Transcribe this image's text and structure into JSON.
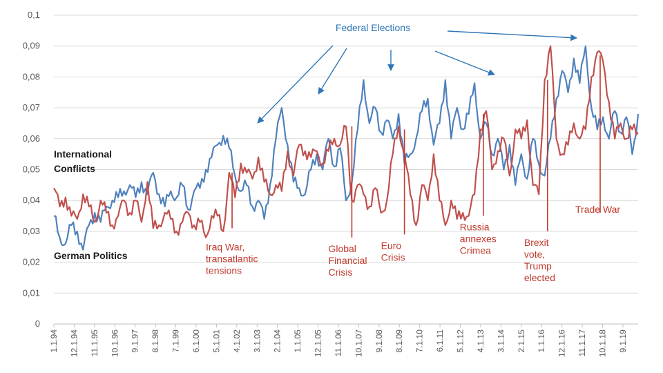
{
  "chart_data": {
    "type": "line",
    "title": "",
    "xlabel": "",
    "ylabel": "",
    "ylim": [
      0,
      0.1
    ],
    "y_ticks": [
      "0",
      "0,01",
      "0,02",
      "0,03",
      "0,04",
      "0,05",
      "0,06",
      "0,07",
      "0,08",
      "0,09",
      "0,1"
    ],
    "x_ticks": [
      "1.1.94",
      "12.1.94",
      "11.1.95",
      "10.1.96",
      "9.1.97",
      "8.1.98",
      "7.1.99",
      "6.1.00",
      "5.1.01",
      "4.1.02",
      "3.1.03",
      "2.1.04",
      "1.1.05",
      "12.1.05",
      "11.1.06",
      "10.1.07",
      "9.1.08",
      "8.1.09",
      "7.1.10",
      "6.1.11",
      "5.1.12",
      "4.1.13",
      "3.1.14",
      "2.1.15",
      "1.1.16",
      "12.1.16",
      "11.1.17",
      "10.1.18",
      "9.1.19"
    ],
    "grid": "horizontal",
    "series": [
      {
        "name": "International Conflicts",
        "color": "#4f81bd",
        "label_lines": [
          "International",
          "Conflicts"
        ],
        "anchors": [
          [
            0,
            0.035
          ],
          [
            1,
            0.028
          ],
          [
            2,
            0.026
          ],
          [
            3,
            0.032
          ],
          [
            4,
            0.03
          ],
          [
            5,
            0.024
          ],
          [
            6,
            0.032
          ],
          [
            7,
            0.036
          ],
          [
            8,
            0.033
          ],
          [
            9,
            0.038
          ],
          [
            10,
            0.04
          ],
          [
            11,
            0.041
          ],
          [
            12,
            0.043
          ],
          [
            13,
            0.045
          ],
          [
            14,
            0.041
          ],
          [
            15,
            0.046
          ],
          [
            16,
            0.042
          ],
          [
            17,
            0.049
          ],
          [
            18,
            0.042
          ],
          [
            19,
            0.038
          ],
          [
            20,
            0.043
          ],
          [
            21,
            0.041
          ],
          [
            22,
            0.045
          ],
          [
            23,
            0.037
          ],
          [
            24,
            0.043
          ],
          [
            25,
            0.044
          ],
          [
            26,
            0.05
          ],
          [
            27,
            0.054
          ],
          [
            28,
            0.058
          ],
          [
            29,
            0.061
          ],
          [
            30,
            0.057
          ],
          [
            31,
            0.048
          ],
          [
            32,
            0.043
          ],
          [
            33,
            0.045
          ],
          [
            34,
            0.038
          ],
          [
            35,
            0.04
          ],
          [
            36,
            0.034
          ],
          [
            37,
            0.045
          ],
          [
            38,
            0.06
          ],
          [
            39,
            0.07
          ],
          [
            40,
            0.058
          ],
          [
            41,
            0.046
          ],
          [
            42,
            0.044
          ],
          [
            43,
            0.042
          ],
          [
            44,
            0.05
          ],
          [
            45,
            0.055
          ],
          [
            46,
            0.05
          ],
          [
            47,
            0.06
          ],
          [
            48,
            0.051
          ],
          [
            49,
            0.057
          ],
          [
            50,
            0.04
          ],
          [
            51,
            0.046
          ],
          [
            52,
            0.063
          ],
          [
            53,
            0.079
          ],
          [
            54,
            0.065
          ],
          [
            55,
            0.07
          ],
          [
            56,
            0.062
          ],
          [
            57,
            0.066
          ],
          [
            58,
            0.06
          ],
          [
            59,
            0.068
          ],
          [
            60,
            0.052
          ],
          [
            61,
            0.055
          ],
          [
            62,
            0.06
          ],
          [
            63,
            0.069
          ],
          [
            64,
            0.073
          ],
          [
            65,
            0.058
          ],
          [
            66,
            0.065
          ],
          [
            67,
            0.079
          ],
          [
            68,
            0.06
          ],
          [
            69,
            0.07
          ],
          [
            70,
            0.063
          ],
          [
            71,
            0.068
          ],
          [
            72,
            0.078
          ],
          [
            73,
            0.06
          ],
          [
            74,
            0.065
          ],
          [
            75,
            0.055
          ],
          [
            76,
            0.06
          ],
          [
            77,
            0.05
          ],
          [
            78,
            0.058
          ],
          [
            79,
            0.045
          ],
          [
            80,
            0.055
          ],
          [
            81,
            0.047
          ],
          [
            82,
            0.06
          ],
          [
            83,
            0.052
          ],
          [
            84,
            0.048
          ],
          [
            85,
            0.06
          ],
          [
            86,
            0.073
          ],
          [
            87,
            0.082
          ],
          [
            88,
            0.075
          ],
          [
            89,
            0.086
          ],
          [
            90,
            0.078
          ],
          [
            91,
            0.09
          ],
          [
            92,
            0.07
          ],
          [
            93,
            0.063
          ],
          [
            94,
            0.067
          ],
          [
            95,
            0.06
          ],
          [
            96,
            0.069
          ],
          [
            97,
            0.062
          ],
          [
            98,
            0.067
          ],
          [
            99,
            0.055
          ],
          [
            100,
            0.068
          ]
        ]
      },
      {
        "name": "German Politics",
        "color": "#c0504d",
        "label_lines": [
          "German Politics"
        ],
        "anchors": [
          [
            0,
            0.044
          ],
          [
            1,
            0.038
          ],
          [
            2,
            0.041
          ],
          [
            3,
            0.035
          ],
          [
            4,
            0.034
          ],
          [
            5,
            0.042
          ],
          [
            6,
            0.038
          ],
          [
            7,
            0.033
          ],
          [
            8,
            0.04
          ],
          [
            9,
            0.036
          ],
          [
            10,
            0.032
          ],
          [
            11,
            0.035
          ],
          [
            12,
            0.04
          ],
          [
            13,
            0.036
          ],
          [
            14,
            0.04
          ],
          [
            15,
            0.033
          ],
          [
            16,
            0.046
          ],
          [
            17,
            0.031
          ],
          [
            18,
            0.032
          ],
          [
            19,
            0.036
          ],
          [
            20,
            0.034
          ],
          [
            21,
            0.03
          ],
          [
            22,
            0.033
          ],
          [
            23,
            0.036
          ],
          [
            24,
            0.032
          ],
          [
            25,
            0.033
          ],
          [
            26,
            0.028
          ],
          [
            27,
            0.035
          ],
          [
            28,
            0.035
          ],
          [
            29,
            0.03
          ],
          [
            30,
            0.049
          ],
          [
            31,
            0.041
          ],
          [
            32,
            0.052
          ],
          [
            33,
            0.049
          ],
          [
            34,
            0.047
          ],
          [
            35,
            0.054
          ],
          [
            36,
            0.046
          ],
          [
            37,
            0.042
          ],
          [
            38,
            0.045
          ],
          [
            39,
            0.043
          ],
          [
            40,
            0.056
          ],
          [
            41,
            0.048
          ],
          [
            42,
            0.058
          ],
          [
            43,
            0.056
          ],
          [
            44,
            0.054
          ],
          [
            45,
            0.056
          ],
          [
            46,
            0.052
          ],
          [
            47,
            0.056
          ],
          [
            48,
            0.06
          ],
          [
            49,
            0.058
          ],
          [
            50,
            0.064
          ],
          [
            51,
            0.04
          ],
          [
            52,
            0.045
          ],
          [
            53,
            0.042
          ],
          [
            54,
            0.038
          ],
          [
            55,
            0.044
          ],
          [
            56,
            0.036
          ],
          [
            57,
            0.04
          ],
          [
            58,
            0.055
          ],
          [
            59,
            0.064
          ],
          [
            60,
            0.055
          ],
          [
            61,
            0.042
          ],
          [
            62,
            0.032
          ],
          [
            63,
            0.045
          ],
          [
            64,
            0.04
          ],
          [
            65,
            0.055
          ],
          [
            66,
            0.04
          ],
          [
            67,
            0.032
          ],
          [
            68,
            0.04
          ],
          [
            69,
            0.034
          ],
          [
            70,
            0.036
          ],
          [
            71,
            0.035
          ],
          [
            72,
            0.042
          ],
          [
            73,
            0.063
          ],
          [
            74,
            0.069
          ],
          [
            75,
            0.05
          ],
          [
            76,
            0.056
          ],
          [
            77,
            0.06
          ],
          [
            78,
            0.048
          ],
          [
            79,
            0.063
          ],
          [
            80,
            0.06
          ],
          [
            81,
            0.066
          ],
          [
            82,
            0.045
          ],
          [
            83,
            0.042
          ],
          [
            84,
            0.079
          ],
          [
            85,
            0.09
          ],
          [
            86,
            0.06
          ],
          [
            87,
            0.055
          ],
          [
            88,
            0.058
          ],
          [
            89,
            0.065
          ],
          [
            90,
            0.06
          ],
          [
            91,
            0.063
          ],
          [
            92,
            0.08
          ],
          [
            93,
            0.088
          ],
          [
            94,
            0.085
          ],
          [
            95,
            0.072
          ],
          [
            96,
            0.06
          ],
          [
            97,
            0.065
          ],
          [
            98,
            0.06
          ],
          [
            99,
            0.063
          ],
          [
            100,
            0.062
          ]
        ]
      }
    ],
    "annotations_red": [
      {
        "lines": [
          "Iraq War,",
          "transatlantic",
          "tensions"
        ],
        "x": 30.5,
        "y_top": 0.049,
        "y_bottom": 0.031
      },
      {
        "lines": [
          "Global",
          "Financial",
          "Crisis"
        ],
        "x": 51,
        "y_top": 0.064,
        "y_bottom": 0.028
      },
      {
        "lines": [
          "Euro",
          "Crisis"
        ],
        "x": 60,
        "y_top": 0.063,
        "y_bottom": 0.029
      },
      {
        "lines": [
          "Russia",
          "annexes",
          "Crimea"
        ],
        "x": 73.5,
        "y_top": 0.068,
        "y_bottom": 0.035
      },
      {
        "lines": [
          "Brexit",
          "vote,",
          "Trump",
          "elected"
        ],
        "x": 84.5,
        "y_top": 0.079,
        "y_bottom": 0.03
      },
      {
        "lines": [
          "Trade War"
        ],
        "x": 93.5,
        "y_top": 0.087,
        "y_bottom": 0.036
      }
    ],
    "federal_elections": {
      "label": "Federal Elections",
      "color": "#2e75b6"
    }
  }
}
